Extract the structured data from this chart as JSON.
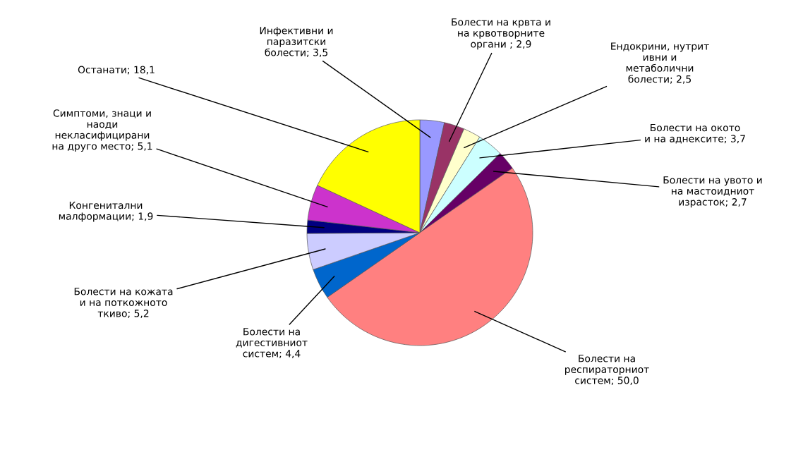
{
  "chart_data": {
    "type": "pie",
    "categories": [
      "Инфективни и\nпаразитски\nболести",
      "Болести на крвта и\nна крвотворните\nоргани ",
      "Ендокрини, нутрит\nивни и\nметаболични\nболести",
      "Болести на окото\nи на аднексите",
      "Болести на увото и\nна мастоидниот\nизрасток",
      "Болести на\nреспираторниот\nсистем",
      "Болести на\nдигестивниот\nсистем",
      "Болести на кожата\nи на поткожното\nткиво",
      "Конгенитални\nмалформации",
      "Симптоми, знаци и\nнаоди\nнекласифицирани\nна друго место",
      "Останати"
    ],
    "values": [
      3.5,
      2.9,
      2.5,
      3.7,
      2.7,
      50.0,
      4.4,
      5.2,
      1.9,
      5.1,
      18.1
    ],
    "value_labels": [
      "3,5",
      "2,9",
      "2,5",
      "3,7",
      "2,7",
      "50,0",
      "4,4",
      "5,2",
      "1,9",
      "5,1",
      "18,1"
    ],
    "colors": [
      "#9999ff",
      "#993366",
      "#ffffcc",
      "#ccffff",
      "#660066",
      "#ff8080",
      "#0066cc",
      "#ccccff",
      "#000080",
      "#cc33cc",
      "#ffff00"
    ],
    "legend": false
  }
}
